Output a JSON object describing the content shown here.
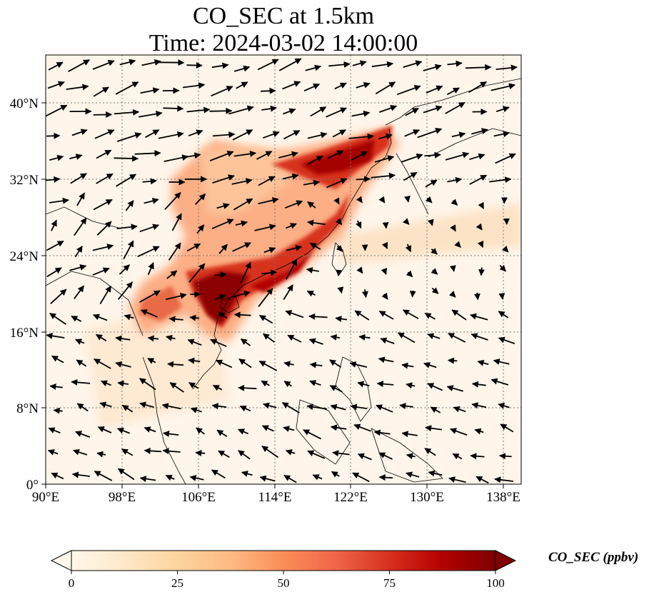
{
  "title": {
    "line1": "CO_SEC at 1.5km",
    "line2": "Time: 2024-03-02 14:00:00"
  },
  "map": {
    "lon_range": [
      90,
      140
    ],
    "lat_range": [
      0,
      45
    ],
    "x_ticks": [
      "90°E",
      "98°E",
      "106°E",
      "114°E",
      "122°E",
      "130°E",
      "138°E"
    ],
    "y_ticks": [
      "0°",
      "8°N",
      "16°N",
      "24°N",
      "32°N",
      "40°N"
    ],
    "grid": "dotted",
    "coastlines": true,
    "wind_vectors": true
  },
  "colorbar": {
    "label": "CO_SEC (ppbv)",
    "ticks": [
      "0",
      "25",
      "50",
      "75",
      "100"
    ],
    "range": [
      0,
      100
    ],
    "extend": "both",
    "colormap": "OrRd",
    "colors": [
      "#fff7ec",
      "#fee8c8",
      "#fdd49e",
      "#fdbb84",
      "#fc8d59",
      "#ef6548",
      "#d7301f",
      "#b30000",
      "#7f0000"
    ]
  }
}
